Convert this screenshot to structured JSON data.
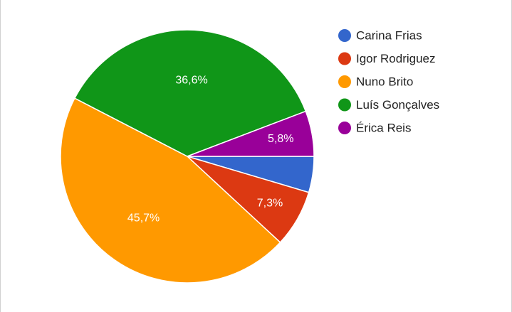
{
  "chart_data": {
    "type": "pie",
    "categories": [
      "Carina Frias",
      "Igor Rodriguez",
      "Nuno Brito",
      "Luís Gonçalves",
      "Érica Reis"
    ],
    "values": [
      4.6,
      7.3,
      45.7,
      36.6,
      5.8
    ],
    "value_labels": [
      null,
      "7,3%",
      "45,7%",
      "36,6%",
      "5,8%"
    ],
    "colors": [
      "#3366cc",
      "#dc3912",
      "#ff9900",
      "#109618",
      "#990099"
    ],
    "legend": "right"
  }
}
